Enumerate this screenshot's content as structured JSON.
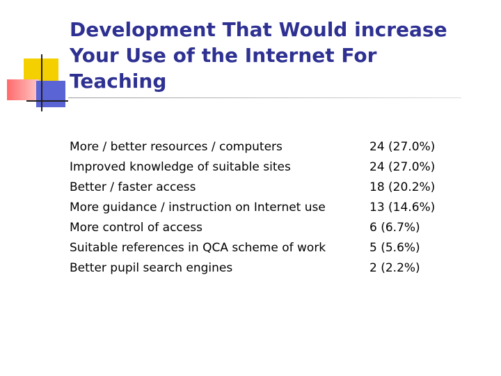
{
  "slide": {
    "title_lines": [
      "Development That Would increase",
      "Your Use of the Internet For",
      "Teaching"
    ],
    "items": [
      {
        "label": "More / better resources / computers",
        "count": "24 (27.0%)"
      },
      {
        "label": "Improved knowledge of suitable sites",
        "count": "24 (27.0%)"
      },
      {
        "label": "Better / faster access",
        "count": "18 (20.2%)"
      },
      {
        "label": "More guidance / instruction on Internet use",
        "count": "13 (14.6%)"
      },
      {
        "label": "More control of access",
        "count": "6 (6.7%)"
      },
      {
        "label": "Suitable references in QCA scheme of work",
        "count": "5 (5.6%)"
      },
      {
        "label": "Better pupil search engines",
        "count": "2 (2.2%)"
      }
    ]
  },
  "colors": {
    "title": "#2e3192",
    "text": "#000000",
    "logo_yellow": "#f5d000",
    "logo_red": "#ff6a6a",
    "logo_blue": "#5b64d4"
  }
}
